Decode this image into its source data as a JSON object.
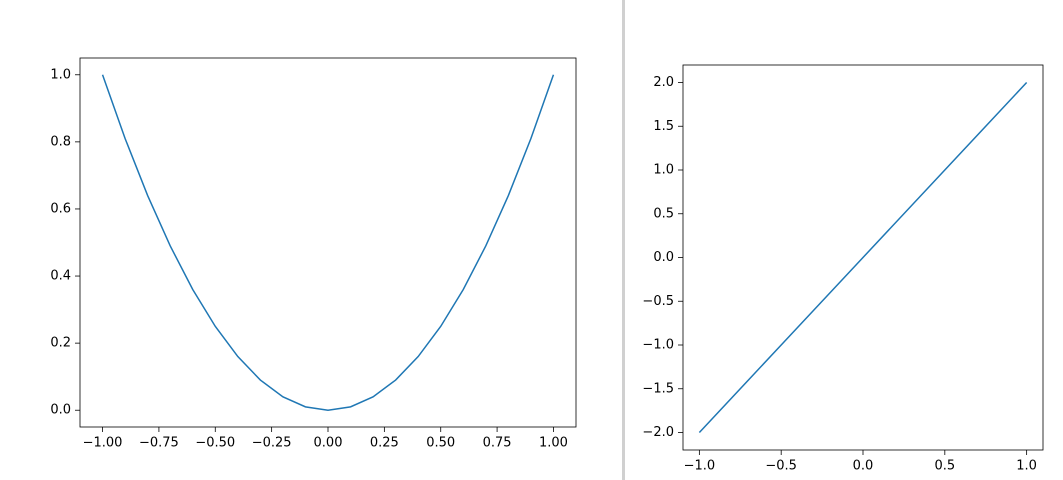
{
  "chart_data": [
    {
      "type": "line",
      "color": "#1f77b4",
      "x": [
        -1.0,
        -0.9,
        -0.8,
        -0.7,
        -0.6,
        -0.5,
        -0.4,
        -0.3,
        -0.2,
        -0.1,
        0,
        0.1,
        0.2,
        0.3,
        0.4,
        0.5,
        0.6,
        0.7,
        0.8,
        0.9,
        1.0
      ],
      "values": [
        1.0,
        0.81,
        0.64,
        0.49,
        0.36,
        0.25,
        0.16,
        0.09,
        0.04,
        0.01,
        0,
        0.01,
        0.04,
        0.09,
        0.16,
        0.25,
        0.36,
        0.49,
        0.64,
        0.81,
        1.0
      ],
      "xlim": [
        -1.1,
        1.1
      ],
      "xticks": [
        {
          "value": -1,
          "label": "−1.00"
        },
        {
          "value": -0.75,
          "label": "−0.75"
        },
        {
          "value": -0.5,
          "label": "−0.50"
        },
        {
          "value": -0.25,
          "label": "−0.25"
        },
        {
          "value": 0,
          "label": "0.00"
        },
        {
          "value": 0.25,
          "label": "0.25"
        },
        {
          "value": 0.5,
          "label": "0.50"
        },
        {
          "value": 0.75,
          "label": "0.75"
        },
        {
          "value": 1,
          "label": "1.00"
        }
      ],
      "ylim": [
        -0.05,
        1.05
      ],
      "yticks": [
        {
          "value": 0,
          "label": "0.0"
        },
        0.2,
        0.4,
        0.6,
        0.8,
        {
          "value": 1,
          "label": "1.0"
        }
      ]
    },
    {
      "type": "line",
      "color": "#1f77b4",
      "x": [
        -1.0,
        -0.5,
        0,
        0.5,
        1.0
      ],
      "values": [
        -2.0,
        -1.0,
        0,
        1.0,
        2.0
      ],
      "xlim": [
        -1.1,
        1.1
      ],
      "xticks": [
        {
          "value": -1,
          "label": "−1.0"
        },
        {
          "value": -0.5,
          "label": "−0.5"
        },
        {
          "value": 0,
          "label": "0.0"
        },
        0.5,
        {
          "value": 1,
          "label": "1.0"
        }
      ],
      "ylim": [
        -2.2,
        2.2
      ],
      "yticks": [
        {
          "value": -2,
          "label": "−2.0"
        },
        {
          "value": -1.5,
          "label": "−1.5"
        },
        {
          "value": -1,
          "label": "−1.0"
        },
        {
          "value": -0.5,
          "label": "−0.5"
        },
        {
          "value": 0,
          "label": "0.0"
        },
        0.5,
        {
          "value": 1,
          "label": "1.0"
        },
        1.5,
        {
          "value": 2,
          "label": "2.0"
        }
      ]
    }
  ]
}
